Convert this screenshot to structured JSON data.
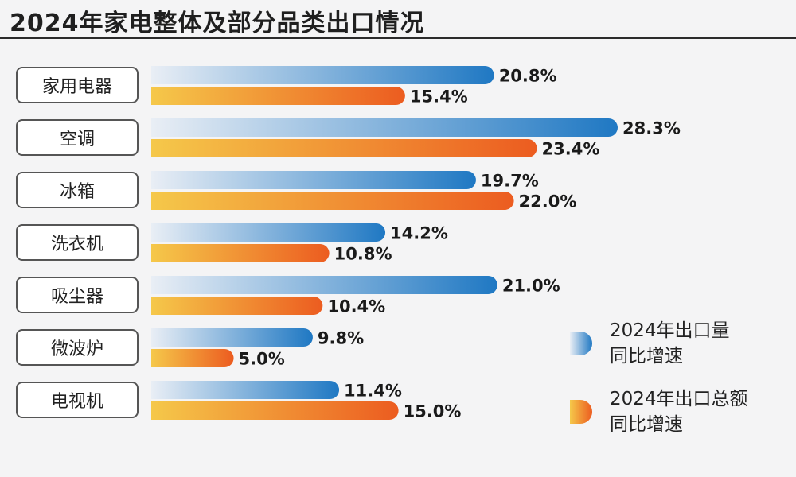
{
  "colors": {
    "volume_start": "#e9eef5",
    "volume_end": "#1f78c3",
    "value_start": "#f5c84a",
    "value_end": "#ec5c20"
  },
  "chart_data": {
    "type": "bar",
    "orientation": "horizontal",
    "title": "2024年家电整体及部分品类出口情况",
    "categories": [
      "家用电器",
      "空调",
      "冰箱",
      "洗衣机",
      "吸尘器",
      "微波炉",
      "电视机"
    ],
    "series": [
      {
        "name": "2024年出口量同比增速",
        "values": [
          20.8,
          28.3,
          19.7,
          14.2,
          21.0,
          9.8,
          11.4
        ],
        "labels": [
          "20.8%",
          "28.3%",
          "19.7%",
          "14.2%",
          "21.0%",
          "9.8%",
          "11.4%"
        ]
      },
      {
        "name": "2024年出口总额同比增速",
        "values": [
          15.4,
          23.4,
          22.0,
          10.8,
          10.4,
          5.0,
          15.0
        ],
        "labels": [
          "15.4%",
          "23.4%",
          "22.0%",
          "10.8%",
          "10.4%",
          "5.0%",
          "15.0%"
        ]
      }
    ],
    "unit": "%",
    "grid": false,
    "legend_position": "right"
  },
  "legend": [
    {
      "line1": "2024年出口量",
      "line2": "同比增速"
    },
    {
      "line1": "2024年出口总额",
      "line2": "同比增速"
    }
  ]
}
